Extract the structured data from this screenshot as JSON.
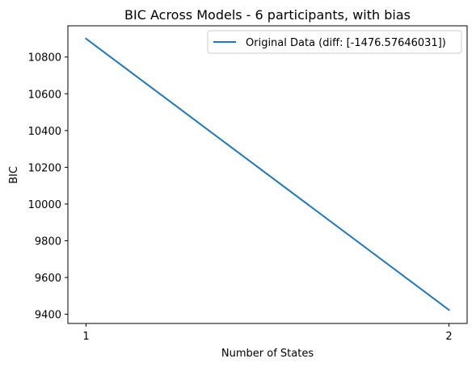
{
  "chart_data": {
    "type": "line",
    "title": "BIC Across Models - 6 participants, with bias",
    "xlabel": "Number of States",
    "ylabel": "BIC",
    "x": [
      1,
      2
    ],
    "x_ticks": [
      "1",
      "2"
    ],
    "y_ticks": [
      "9400",
      "9600",
      "9800",
      "10000",
      "10200",
      "10400",
      "10600",
      "10800"
    ],
    "xlim": [
      0.95,
      2.05
    ],
    "ylim": [
      9350,
      10970
    ],
    "series": [
      {
        "name": "Original Data (diff: [-1476.57646031])",
        "values": [
          10900,
          9423.4
        ],
        "color": "#1f77b4"
      }
    ],
    "legend_position": "upper right",
    "grid": false
  }
}
